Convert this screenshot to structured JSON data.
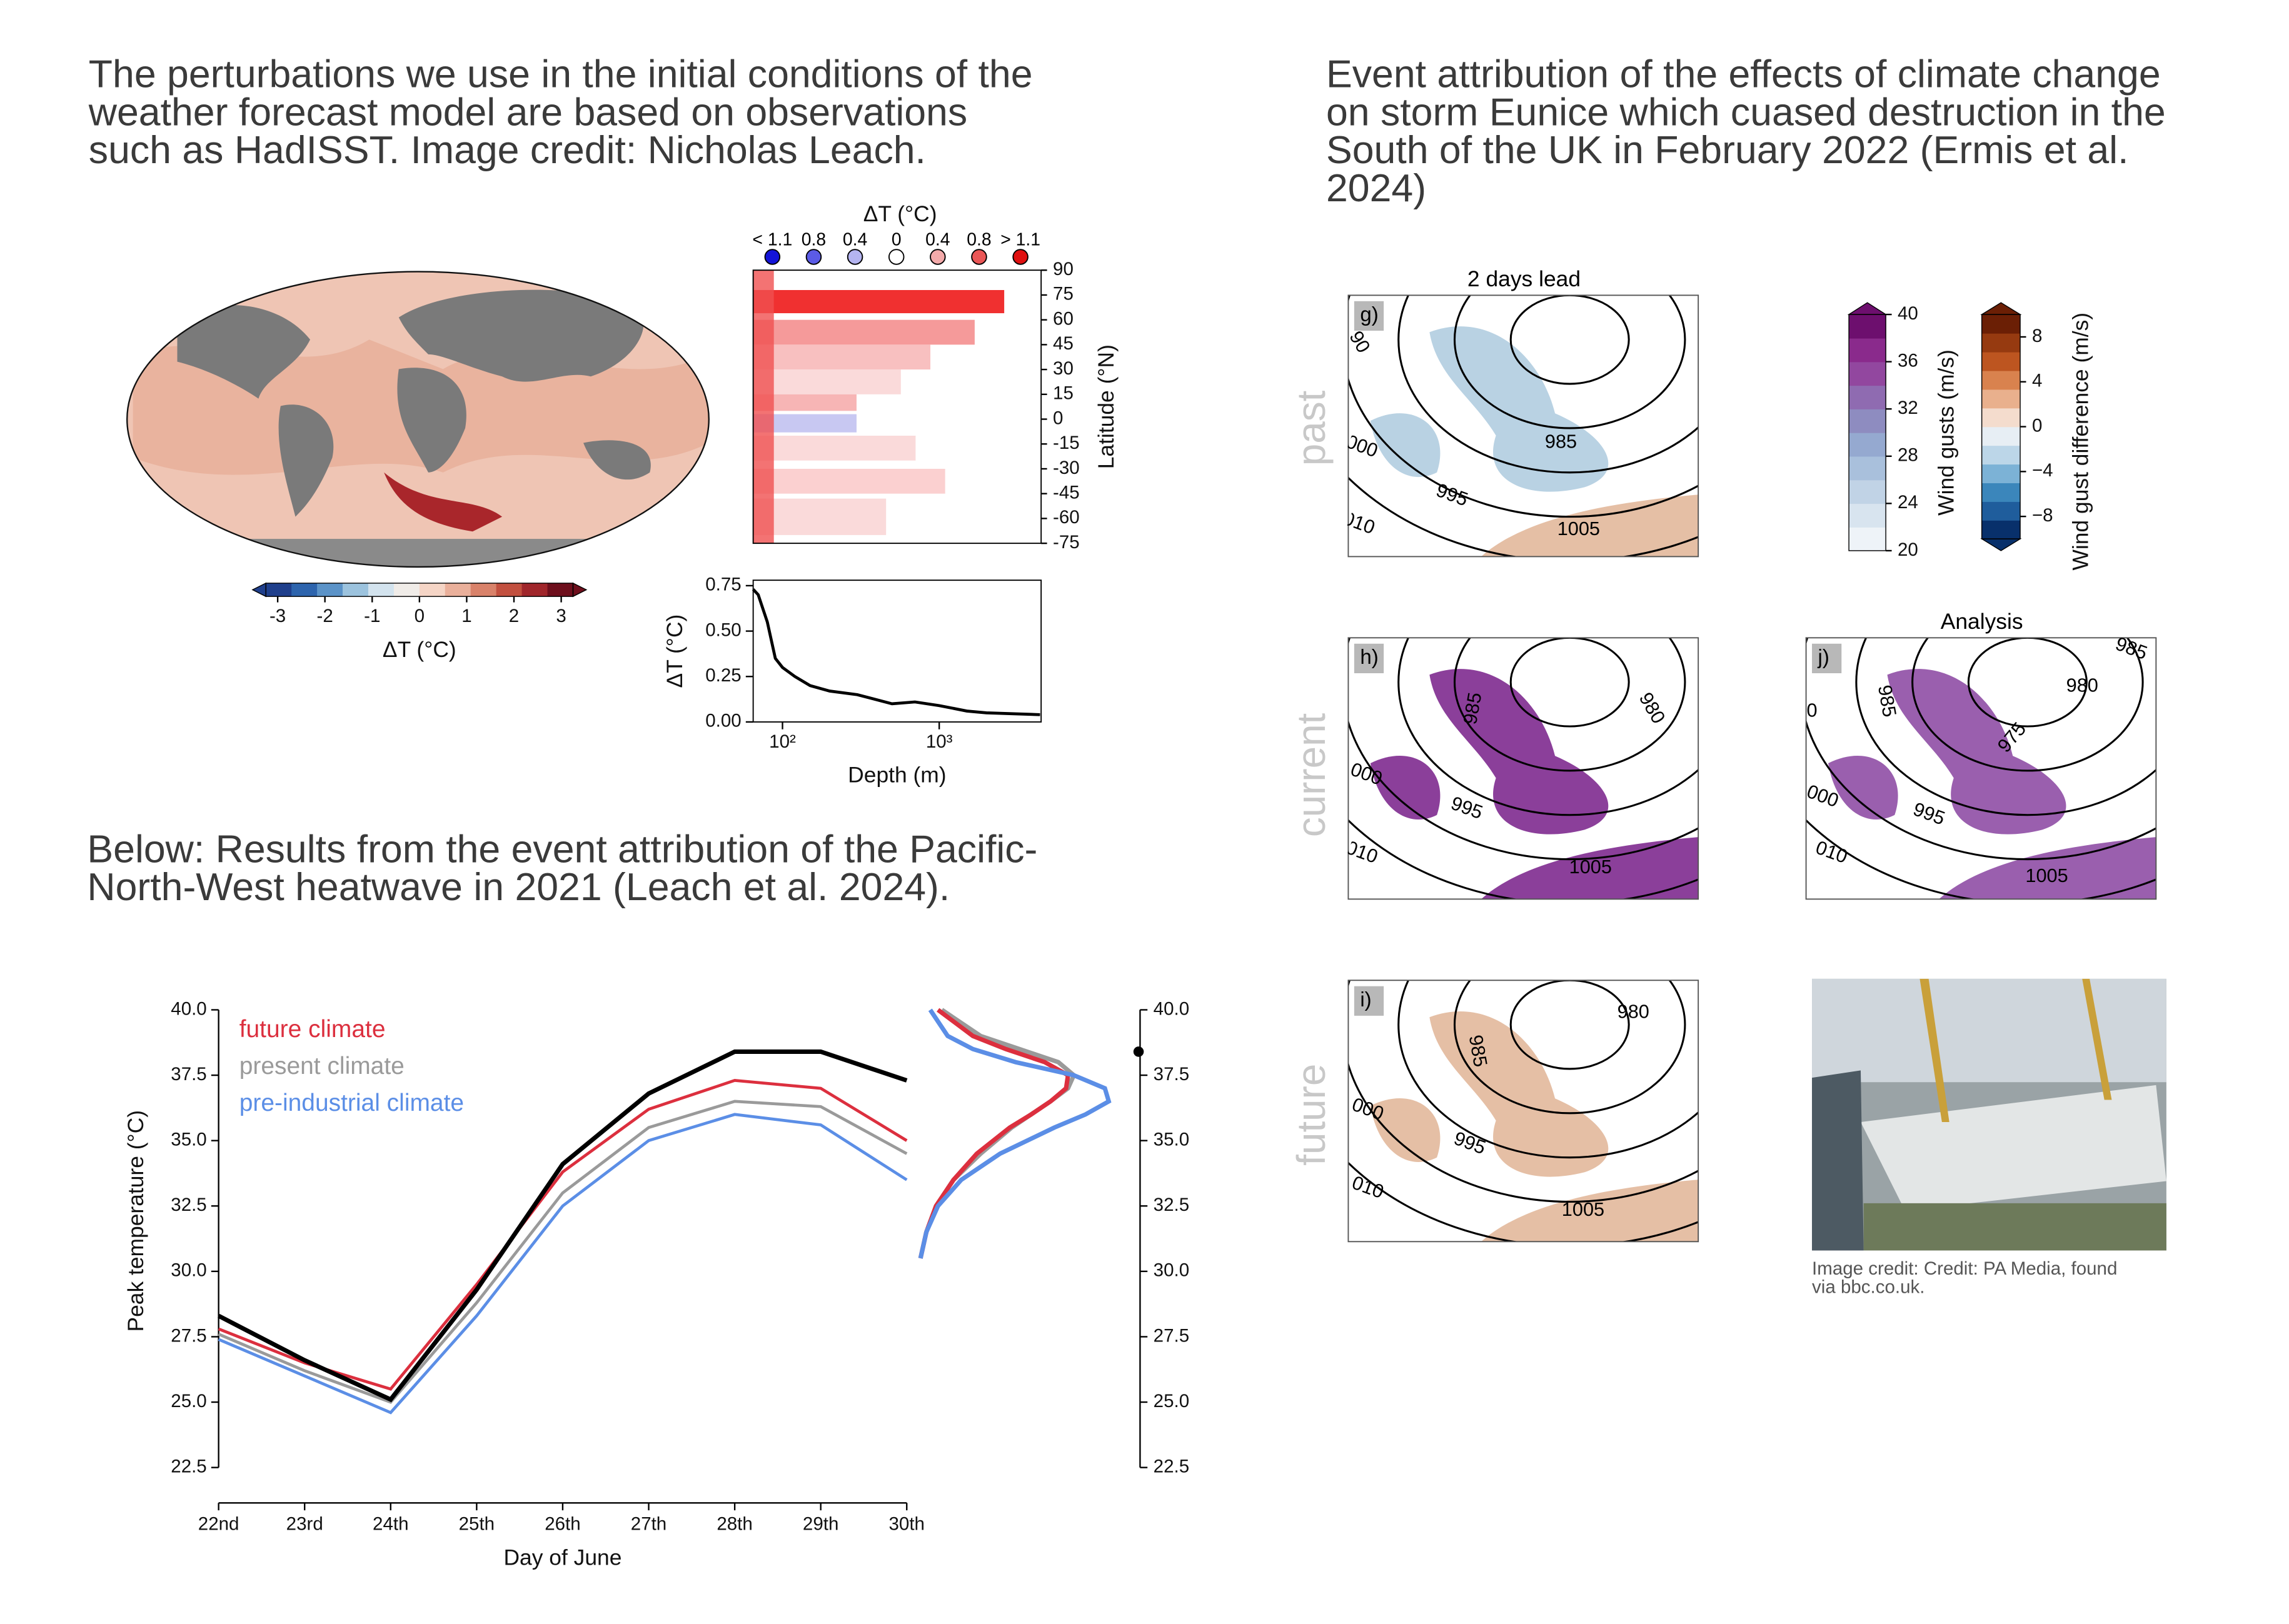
{
  "texts": {
    "left_intro": [
      "The perturbations we use in the initial conditions of the",
      "weather forecast model are based on observations",
      "such as HadISST. Image credit: Nicholas Leach."
    ],
    "left_below": [
      "Below: Results from the event attribution of the Pacific-",
      "North-West heatwave in 2021 (Leach et al. 2024)."
    ],
    "right_intro": [
      "Event attribution of the effects of climate change",
      "on storm Eunice which cuased destruction in the",
      "South of the UK in February 2022 (Ermis et al.",
      "2024)"
    ],
    "credit": [
      "Image credit: Credit: PA Media, found",
      "via bbc.co.uk."
    ],
    "rows": [
      "past",
      "current",
      "future"
    ]
  },
  "panels": [
    {
      "label": "g)",
      "title": "2 days lead",
      "contour_labels": [
        "90",
        "985",
        "000",
        "995",
        "010",
        "1005"
      ]
    },
    {
      "label": "h)",
      "contour_labels": [
        "985",
        "980",
        "000",
        "995",
        "010",
        "1005"
      ]
    },
    {
      "label": "j)",
      "title": "Analysis",
      "contour_labels": [
        "985",
        "980",
        "975",
        "985",
        "0",
        "000",
        "995",
        "010",
        "1005"
      ]
    },
    {
      "label": "i)",
      "contour_labels": [
        "980",
        "985",
        "000",
        "995",
        "010",
        "1005"
      ]
    }
  ],
  "chart_data": [
    {
      "type": "colorbar",
      "orientation": "horizontal",
      "label": "ΔT (°C)",
      "ticks": [
        -3,
        -2,
        -1,
        0,
        1,
        2,
        3
      ],
      "lim": [
        -3.25,
        3.25
      ],
      "extend": "both",
      "colors": [
        "#1f3f8c",
        "#2d64ad",
        "#5b93c8",
        "#9cc3de",
        "#d3e3ee",
        "#f0ece8",
        "#f5d5c6",
        "#eab09b",
        "#d9826a",
        "#c2503f",
        "#a0262b",
        "#6e0f1c"
      ]
    },
    {
      "type": "profile",
      "title": "ΔT (°C)",
      "ylabel": "Latitude (°N)",
      "ylim": [
        -75,
        90
      ],
      "yticks": [
        90,
        75,
        60,
        45,
        30,
        15,
        0,
        -15,
        -30,
        -45,
        -60,
        -75
      ],
      "legend": [
        {
          "label": "< 1.1",
          "color": "#1414d8"
        },
        {
          "label": "0.8",
          "color": "#5b5be6"
        },
        {
          "label": "0.4",
          "color": "#b4b4f0"
        },
        {
          "label": "0",
          "color": "#ffffff"
        },
        {
          "label": "0.4",
          "color": "#f3aaaa"
        },
        {
          "label": "0.8",
          "color": "#ea5656"
        },
        {
          "label": "> 1.1",
          "color": "#e01010"
        }
      ]
    },
    {
      "type": "line",
      "xlog": true,
      "color": "#000000",
      "xlabel": "Depth (m)",
      "ylabel": "ΔT (°C)",
      "x": [
        65,
        70,
        80,
        90,
        100,
        120,
        150,
        200,
        300,
        500,
        700,
        1000,
        1500,
        2000,
        3000,
        4400
      ],
      "values": [
        0.73,
        0.7,
        0.55,
        0.35,
        0.3,
        0.25,
        0.2,
        0.17,
        0.15,
        0.1,
        0.11,
        0.09,
        0.06,
        0.05,
        0.045,
        0.04
      ],
      "xlim": [
        65,
        4470
      ],
      "xticks": [
        {
          "value": 100,
          "label": "10²"
        },
        {
          "value": 1000,
          "label": "10³"
        }
      ],
      "ylim": [
        0,
        0.78
      ],
      "yticks": [
        {
          "value": 0,
          "label": "0.00"
        },
        0.25,
        {
          "value": 0.5,
          "label": "0.50"
        },
        0.75
      ]
    },
    {
      "type": "line",
      "xlabel": "Day of June",
      "ylabel": "Peak temperature (°C)",
      "categories": [
        "22nd",
        "23rd",
        "24th",
        "25th",
        "26th",
        "27th",
        "28th",
        "29th",
        "30th"
      ],
      "series": [
        {
          "name": "future climate",
          "color": "#dc2f3e",
          "values": [
            27.8,
            26.5,
            25.5,
            29.5,
            33.8,
            36.2,
            37.3,
            37.0,
            35.0
          ]
        },
        {
          "name": "present climate",
          "color": "#9a9a9a",
          "values": [
            27.6,
            26.2,
            25.0,
            28.8,
            33.0,
            35.5,
            36.5,
            36.3,
            34.5
          ]
        },
        {
          "name": "pre-industrial climate",
          "color": "#5b8ee6",
          "values": [
            27.4,
            26.0,
            24.6,
            28.3,
            32.5,
            35.0,
            36.0,
            35.6,
            33.5
          ]
        },
        {
          "color": "#000000",
          "values": [
            28.3,
            26.6,
            25.1,
            29.3,
            34.1,
            36.8,
            38.4,
            38.4,
            37.3
          ]
        }
      ],
      "ylim": [
        22.5,
        40
      ],
      "yticks": [
        22.5,
        {
          "value": 25,
          "label": "25.0"
        },
        27.5,
        {
          "value": 30,
          "label": "30.0"
        },
        32.5,
        {
          "value": 35,
          "label": "35.0"
        },
        37.5,
        {
          "value": 40,
          "label": "40.0"
        }
      ]
    },
    {
      "type": "density",
      "y": [
        30.5,
        31.5,
        32.5,
        33.5,
        34.5,
        35.5,
        36,
        36.5,
        37,
        37.5,
        38,
        38.5,
        39,
        40
      ],
      "xlim": [
        0,
        1.05
      ],
      "series": [
        {
          "color": "#9a9a9a",
          "density": [
            0.01,
            0.04,
            0.09,
            0.18,
            0.32,
            0.48,
            0.58,
            0.68,
            0.77,
            0.8,
            0.72,
            0.52,
            0.32,
            0.12
          ]
        },
        {
          "color": "#dc2f3e",
          "density": [
            0.01,
            0.04,
            0.09,
            0.18,
            0.3,
            0.47,
            0.58,
            0.68,
            0.76,
            0.77,
            0.65,
            0.45,
            0.28,
            0.1
          ]
        },
        {
          "color": "#5b8ee6",
          "density": [
            0.01,
            0.04,
            0.1,
            0.22,
            0.42,
            0.7,
            0.86,
            0.98,
            0.96,
            0.8,
            0.5,
            0.28,
            0.15,
            0.06
          ]
        }
      ],
      "observed": 38.4,
      "ylim": [
        22.5,
        40
      ],
      "yticks": [
        22.5,
        {
          "value": 25,
          "label": "25.0"
        },
        27.5,
        {
          "value": 30,
          "label": "30.0"
        },
        32.5,
        {
          "value": 35,
          "label": "35.0"
        },
        37.5,
        {
          "value": 40,
          "label": "40.0"
        }
      ]
    },
    {
      "type": "colorbar",
      "orientation": "vertical",
      "label": "Wind gusts (m/s)",
      "ticks": [
        20,
        24,
        28,
        32,
        36,
        40
      ],
      "lim": [
        20,
        40
      ],
      "extend": "max",
      "colors": [
        "#eef3f8",
        "#d8e4ef",
        "#c1d3e6",
        "#a9c0dc",
        "#95a9d0",
        "#8e8cc0",
        "#8f6bb1",
        "#92479f",
        "#8a2a8c",
        "#6d0f6e"
      ]
    },
    {
      "type": "colorbar",
      "orientation": "vertical",
      "label": "Wind gust difference (m/s)",
      "ticks": [
        {
          "value": -8,
          "label": "−8"
        },
        {
          "value": -4,
          "label": "−4"
        },
        0,
        4,
        8
      ],
      "lim": [
        -10,
        10
      ],
      "extend": "both",
      "colors": [
        "#08306b",
        "#1f5d9c",
        "#3b86bb",
        "#7cb2d6",
        "#bcd6e8",
        "#e7eef4",
        "#f4dccd",
        "#e9b08d",
        "#d9824e",
        "#bd5520",
        "#963a10",
        "#6b1f05"
      ]
    }
  ]
}
